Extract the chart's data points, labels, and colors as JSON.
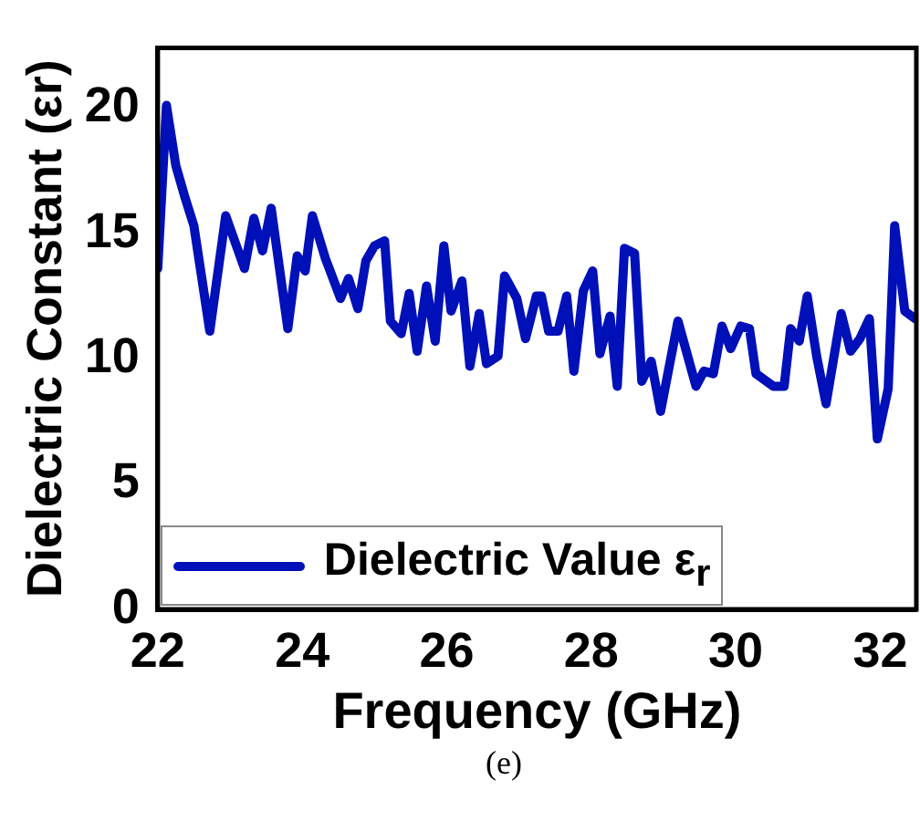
{
  "chart_data": {
    "type": "line",
    "xlabel": "Frequency (GHz)",
    "ylabel": "Dielectric Constant (εr)",
    "annotations": [
      "(e)"
    ],
    "xlim": [
      22,
      32.5
    ],
    "xticks": [
      22,
      24,
      26,
      28,
      30,
      32
    ],
    "ylim": [
      0,
      22.4
    ],
    "yticks": [
      0,
      5,
      10,
      15,
      20
    ],
    "grid": false,
    "legend": "bottom left",
    "marker": "none",
    "line_style": "solid",
    "x": [
      22.0,
      22.12,
      22.25,
      22.38,
      22.5,
      22.72,
      22.94,
      23.2,
      23.33,
      23.45,
      23.57,
      23.8,
      23.93,
      24.04,
      24.14,
      24.32,
      24.53,
      24.64,
      24.77,
      24.88,
      25.0,
      25.14,
      25.22,
      25.37,
      25.48,
      25.59,
      25.72,
      25.84,
      25.96,
      26.06,
      26.21,
      26.32,
      26.45,
      26.55,
      26.71,
      26.8,
      26.97,
      27.09,
      27.24,
      27.31,
      27.41,
      27.54,
      27.66,
      27.76,
      27.89,
      28.02,
      28.12,
      28.26,
      28.36,
      28.46,
      28.6,
      28.7,
      28.83,
      28.96,
      29.2,
      29.45,
      29.56,
      29.69,
      29.81,
      29.93,
      30.07,
      30.19,
      30.28,
      30.52,
      30.67,
      30.76,
      30.88,
      30.99,
      31.12,
      31.25,
      31.46,
      31.59,
      31.72,
      31.85,
      31.96,
      32.11,
      32.2,
      32.34,
      32.48
    ],
    "series": [
      {
        "name": "Dielectric Value ε$_{r}$",
        "color": "#0010b8",
        "values": [
          13.6,
          20.1,
          17.7,
          16.4,
          15.3,
          11.1,
          15.7,
          13.6,
          15.6,
          14.3,
          16.0,
          11.2,
          14.1,
          13.5,
          15.7,
          14.0,
          12.4,
          13.2,
          12.0,
          13.9,
          14.5,
          14.7,
          11.5,
          11.0,
          12.6,
          10.3,
          12.9,
          10.7,
          14.5,
          11.9,
          13.1,
          9.7,
          11.8,
          9.8,
          10.1,
          13.3,
          12.4,
          10.8,
          12.5,
          12.5,
          11.1,
          11.1,
          12.5,
          9.5,
          12.7,
          13.5,
          10.2,
          11.7,
          8.9,
          14.4,
          14.2,
          9.1,
          9.9,
          7.9,
          11.5,
          8.9,
          9.5,
          9.4,
          11.3,
          10.4,
          11.3,
          11.2,
          9.4,
          8.9,
          8.9,
          11.2,
          10.7,
          12.5,
          10.1,
          8.2,
          11.8,
          10.3,
          10.8,
          11.6,
          6.8,
          8.8,
          15.3,
          11.9,
          11.6
        ]
      }
    ]
  }
}
